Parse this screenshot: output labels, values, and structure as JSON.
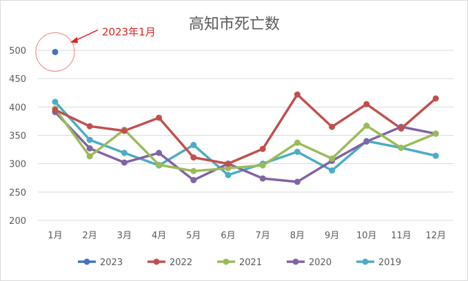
{
  "chart_data": {
    "type": "line",
    "title": "高知市死亡数",
    "xlabel": "",
    "ylabel": "",
    "ylim": [
      200,
      500
    ],
    "yticks": [
      200,
      250,
      300,
      350,
      400,
      450,
      500
    ],
    "categories": [
      "1月",
      "2月",
      "3月",
      "4月",
      "5月",
      "6月",
      "7月",
      "8月",
      "9月",
      "10月",
      "11月",
      "12月"
    ],
    "grid": true,
    "legend_position": "bottom",
    "series": [
      {
        "name": "2023",
        "color": "#4472c4",
        "values": [
          497,
          null,
          null,
          null,
          null,
          null,
          null,
          null,
          null,
          null,
          null,
          null
        ]
      },
      {
        "name": "2022",
        "color": "#c0504d",
        "values": [
          395,
          366,
          358,
          381,
          311,
          300,
          326,
          422,
          365,
          405,
          362,
          415
        ]
      },
      {
        "name": "2021",
        "color": "#9bbb59",
        "values": [
          397,
          313,
          360,
          298,
          287,
          292,
          297,
          337,
          309,
          367,
          328,
          353
        ]
      },
      {
        "name": "2020",
        "color": "#8064a2",
        "values": [
          391,
          327,
          302,
          319,
          271,
          300,
          274,
          268,
          305,
          339,
          365,
          353
        ]
      },
      {
        "name": "2019",
        "color": "#4bacc6",
        "values": [
          409,
          342,
          319,
          297,
          333,
          280,
          300,
          321,
          288,
          340,
          328,
          314
        ]
      }
    ],
    "annotation": {
      "text": "2023年1月",
      "color": "#e02020",
      "target_series": "2023",
      "target_category": "1月"
    }
  }
}
